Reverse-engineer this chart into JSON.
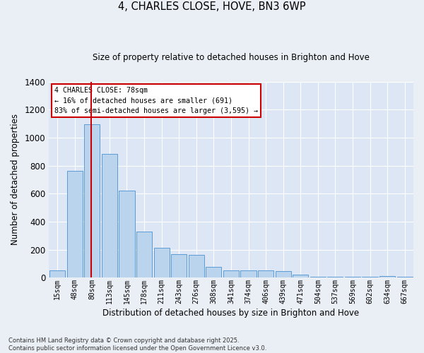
{
  "title": "4, CHARLES CLOSE, HOVE, BN3 6WP",
  "subtitle": "Size of property relative to detached houses in Brighton and Hove",
  "xlabel": "Distribution of detached houses by size in Brighton and Hove",
  "ylabel": "Number of detached properties",
  "bar_color": "#bad4ed",
  "bar_edge_color": "#5b9bd5",
  "background_color": "#dce6f5",
  "grid_color": "#ffffff",
  "fig_bg": "#eaeef5",
  "categories": [
    "15sqm",
    "48sqm",
    "80sqm",
    "113sqm",
    "145sqm",
    "178sqm",
    "211sqm",
    "243sqm",
    "276sqm",
    "308sqm",
    "341sqm",
    "374sqm",
    "406sqm",
    "439sqm",
    "471sqm",
    "504sqm",
    "537sqm",
    "569sqm",
    "602sqm",
    "634sqm",
    "667sqm"
  ],
  "values": [
    55,
    762,
    1095,
    885,
    620,
    330,
    215,
    170,
    165,
    80,
    55,
    50,
    50,
    45,
    20,
    5,
    5,
    5,
    5,
    10,
    5
  ],
  "ylim": [
    0,
    1400
  ],
  "yticks": [
    0,
    200,
    400,
    600,
    800,
    1000,
    1200,
    1400
  ],
  "red_line_x": 1.94,
  "annotation_title": "4 CHARLES CLOSE: 78sqm",
  "annotation_line1": "← 16% of detached houses are smaller (691)",
  "annotation_line2": "83% of semi-detached houses are larger (3,595) →",
  "footer_line1": "Contains HM Land Registry data © Crown copyright and database right 2025.",
  "footer_line2": "Contains public sector information licensed under the Open Government Licence v3.0.",
  "red_line_color": "#cc0000",
  "annotation_box_color": "#cc0000"
}
